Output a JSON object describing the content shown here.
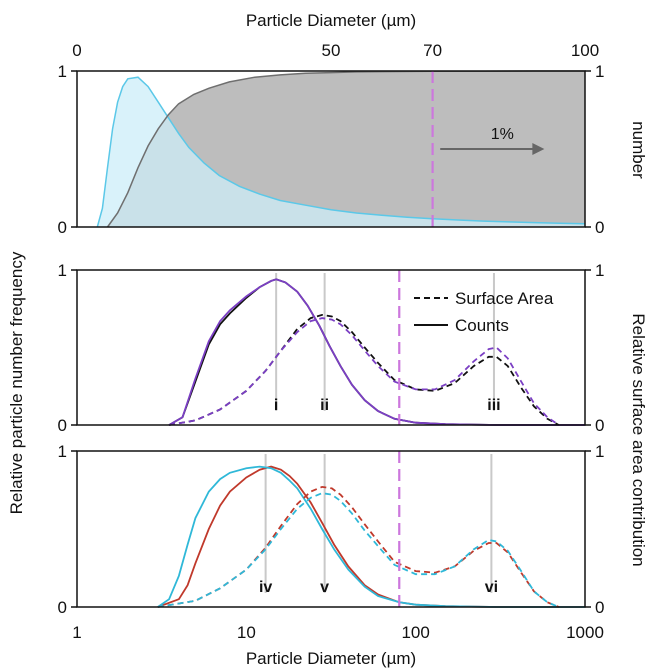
{
  "chart_data": [
    {
      "type": "area",
      "top_axis_label": "Particle Diameter (µm)",
      "top_ticks": [
        "0",
        "50",
        "70",
        "100"
      ],
      "top_tick_values": [
        0,
        50,
        70,
        100
      ],
      "xlim": [
        0,
        100
      ],
      "ylim": [
        0,
        1
      ],
      "left_ticks": [
        "0",
        "1"
      ],
      "right_ticks": [
        "0",
        "1"
      ],
      "right_label_fragment": "number",
      "threshold_x": 70,
      "annotation": "1%",
      "series": [
        {
          "color": "#5bc8e8",
          "fill": "#cdeef8",
          "x": [
            4,
            5,
            6,
            7,
            8,
            9,
            10,
            12,
            14,
            16,
            18,
            20,
            22,
            25,
            28,
            32,
            36,
            40,
            45,
            50,
            55,
            60,
            65,
            70,
            75,
            80,
            85,
            90,
            95,
            100
          ],
          "y": [
            0,
            0.12,
            0.38,
            0.63,
            0.8,
            0.9,
            0.95,
            0.96,
            0.9,
            0.8,
            0.7,
            0.6,
            0.51,
            0.41,
            0.33,
            0.26,
            0.21,
            0.17,
            0.14,
            0.11,
            0.09,
            0.075,
            0.063,
            0.053,
            0.045,
            0.038,
            0.033,
            0.028,
            0.024,
            0.021
          ]
        },
        {
          "color": "#6f6f6f",
          "fill": "#bdbdbd",
          "x": [
            6,
            8,
            10,
            12,
            14,
            16,
            18,
            20,
            23,
            26,
            30,
            35,
            40,
            45,
            50,
            55,
            60,
            70,
            80,
            90,
            100
          ],
          "y": [
            0,
            0.09,
            0.22,
            0.38,
            0.52,
            0.63,
            0.72,
            0.79,
            0.85,
            0.89,
            0.93,
            0.96,
            0.975,
            0.985,
            0.99,
            0.994,
            0.996,
            0.998,
            0.999,
            1.0,
            1.0
          ]
        }
      ]
    },
    {
      "type": "line",
      "x_scale": "log",
      "xlim": [
        1,
        1000
      ],
      "ylim": [
        0,
        1
      ],
      "left_ticks": [
        "0",
        "1"
      ],
      "right_ticks": [
        "0",
        "1"
      ],
      "threshold_x": 80,
      "markers": [
        {
          "label": "i",
          "x": 15
        },
        {
          "label": "ii",
          "x": 29
        },
        {
          "label": "iii",
          "x": 290
        }
      ],
      "legend": [
        {
          "label": "Surface Area",
          "style": "dashed"
        },
        {
          "label": "Counts",
          "style": "solid"
        }
      ],
      "series": [
        {
          "color": "#111111",
          "style": "solid",
          "x": [
            3.5,
            4.2,
            5,
            6,
            7,
            8,
            10,
            12,
            14,
            15,
            17,
            20,
            23,
            27,
            31,
            36,
            42,
            50,
            60,
            75,
            100,
            150,
            300,
            1000
          ],
          "y": [
            0,
            0.05,
            0.28,
            0.52,
            0.65,
            0.72,
            0.82,
            0.89,
            0.93,
            0.94,
            0.92,
            0.86,
            0.77,
            0.64,
            0.51,
            0.38,
            0.26,
            0.16,
            0.09,
            0.04,
            0.015,
            0.005,
            0,
            0
          ]
        },
        {
          "color": "#7b3fc4",
          "style": "solid",
          "x": [
            3.5,
            4.2,
            5,
            6,
            7,
            8,
            10,
            12,
            14,
            15,
            17,
            20,
            23,
            27,
            31,
            36,
            42,
            50,
            60,
            75,
            100,
            150,
            300,
            1000
          ],
          "y": [
            0,
            0.05,
            0.3,
            0.54,
            0.67,
            0.74,
            0.83,
            0.89,
            0.93,
            0.94,
            0.92,
            0.86,
            0.77,
            0.64,
            0.51,
            0.38,
            0.26,
            0.16,
            0.09,
            0.04,
            0.015,
            0.005,
            0,
            0
          ]
        },
        {
          "color": "#111111",
          "style": "dashed",
          "x": [
            3.5,
            5,
            7,
            10,
            13,
            16,
            20,
            24,
            28,
            32,
            36,
            42,
            50,
            60,
            75,
            100,
            130,
            170,
            220,
            270,
            300,
            350,
            420,
            500,
            600,
            700
          ],
          "y": [
            0,
            0.03,
            0.1,
            0.22,
            0.35,
            0.48,
            0.62,
            0.69,
            0.71,
            0.7,
            0.67,
            0.6,
            0.5,
            0.4,
            0.29,
            0.23,
            0.22,
            0.27,
            0.38,
            0.44,
            0.44,
            0.38,
            0.24,
            0.12,
            0.04,
            0
          ]
        },
        {
          "color": "#7b3fc4",
          "style": "dashed",
          "x": [
            3.5,
            5,
            7,
            10,
            13,
            16,
            20,
            24,
            28,
            32,
            36,
            42,
            50,
            60,
            75,
            100,
            130,
            170,
            220,
            270,
            300,
            350,
            420,
            500,
            600,
            700
          ],
          "y": [
            0,
            0.03,
            0.1,
            0.22,
            0.35,
            0.48,
            0.6,
            0.67,
            0.69,
            0.68,
            0.65,
            0.58,
            0.48,
            0.38,
            0.28,
            0.23,
            0.23,
            0.29,
            0.41,
            0.49,
            0.5,
            0.43,
            0.28,
            0.14,
            0.05,
            0
          ]
        }
      ]
    },
    {
      "type": "line",
      "x_scale": "log",
      "xlim": [
        1,
        1000
      ],
      "ylim": [
        0,
        1
      ],
      "left_ticks": [
        "0",
        "1"
      ],
      "right_ticks": [
        "0",
        "1"
      ],
      "bottom_axis_label": "Particle Diameter (µm)",
      "bottom_ticks": [
        "1",
        "10",
        "100",
        "1000"
      ],
      "bottom_tick_values": [
        1,
        10,
        100,
        1000
      ],
      "threshold_x": 80,
      "markers": [
        {
          "label": "iv",
          "x": 13
        },
        {
          "label": "v",
          "x": 29
        },
        {
          "label": "vi",
          "x": 280
        }
      ],
      "series": [
        {
          "color": "#c0392b",
          "style": "solid",
          "x": [
            3,
            4,
            4.5,
            5,
            6,
            7,
            8,
            10,
            12,
            14,
            16,
            18,
            20,
            24,
            28,
            33,
            40,
            50,
            60,
            80,
            100,
            150,
            300,
            1000
          ],
          "y": [
            0,
            0.05,
            0.14,
            0.28,
            0.5,
            0.65,
            0.74,
            0.83,
            0.88,
            0.9,
            0.88,
            0.84,
            0.79,
            0.67,
            0.54,
            0.4,
            0.26,
            0.14,
            0.08,
            0.03,
            0.015,
            0.005,
            0,
            0
          ]
        },
        {
          "color": "#2fb8d8",
          "style": "solid",
          "x": [
            3,
            3.5,
            4,
            4.5,
            5,
            6,
            7,
            8,
            10,
            12,
            14,
            16,
            18,
            20,
            24,
            28,
            33,
            40,
            50,
            60,
            80,
            100,
            150,
            300,
            1000
          ],
          "y": [
            0,
            0.05,
            0.2,
            0.4,
            0.57,
            0.74,
            0.82,
            0.86,
            0.89,
            0.9,
            0.89,
            0.86,
            0.81,
            0.76,
            0.63,
            0.5,
            0.37,
            0.24,
            0.13,
            0.07,
            0.03,
            0.015,
            0.005,
            0,
            0
          ]
        },
        {
          "color": "#c0392b",
          "style": "dashed",
          "x": [
            3,
            5,
            7,
            10,
            13,
            16,
            20,
            24,
            28,
            32,
            36,
            42,
            50,
            60,
            75,
            100,
            130,
            170,
            220,
            270,
            300,
            350,
            420,
            500,
            600,
            700
          ],
          "y": [
            0,
            0.04,
            0.12,
            0.24,
            0.38,
            0.52,
            0.66,
            0.74,
            0.77,
            0.76,
            0.72,
            0.64,
            0.53,
            0.42,
            0.29,
            0.23,
            0.22,
            0.26,
            0.36,
            0.41,
            0.41,
            0.35,
            0.22,
            0.1,
            0.03,
            0
          ]
        },
        {
          "color": "#2fb8d8",
          "style": "dashed",
          "x": [
            3,
            5,
            7,
            10,
            13,
            16,
            20,
            24,
            28,
            32,
            36,
            42,
            50,
            60,
            75,
            100,
            130,
            170,
            220,
            270,
            300,
            350,
            420,
            500,
            600,
            700
          ],
          "y": [
            0,
            0.04,
            0.12,
            0.24,
            0.37,
            0.5,
            0.63,
            0.7,
            0.73,
            0.72,
            0.68,
            0.6,
            0.49,
            0.39,
            0.27,
            0.21,
            0.21,
            0.26,
            0.37,
            0.43,
            0.42,
            0.36,
            0.23,
            0.1,
            0.03,
            0
          ]
        }
      ]
    }
  ],
  "left_axis_label": "Relative particle number frequency",
  "right_axis_label": "Relative surface area contribution"
}
